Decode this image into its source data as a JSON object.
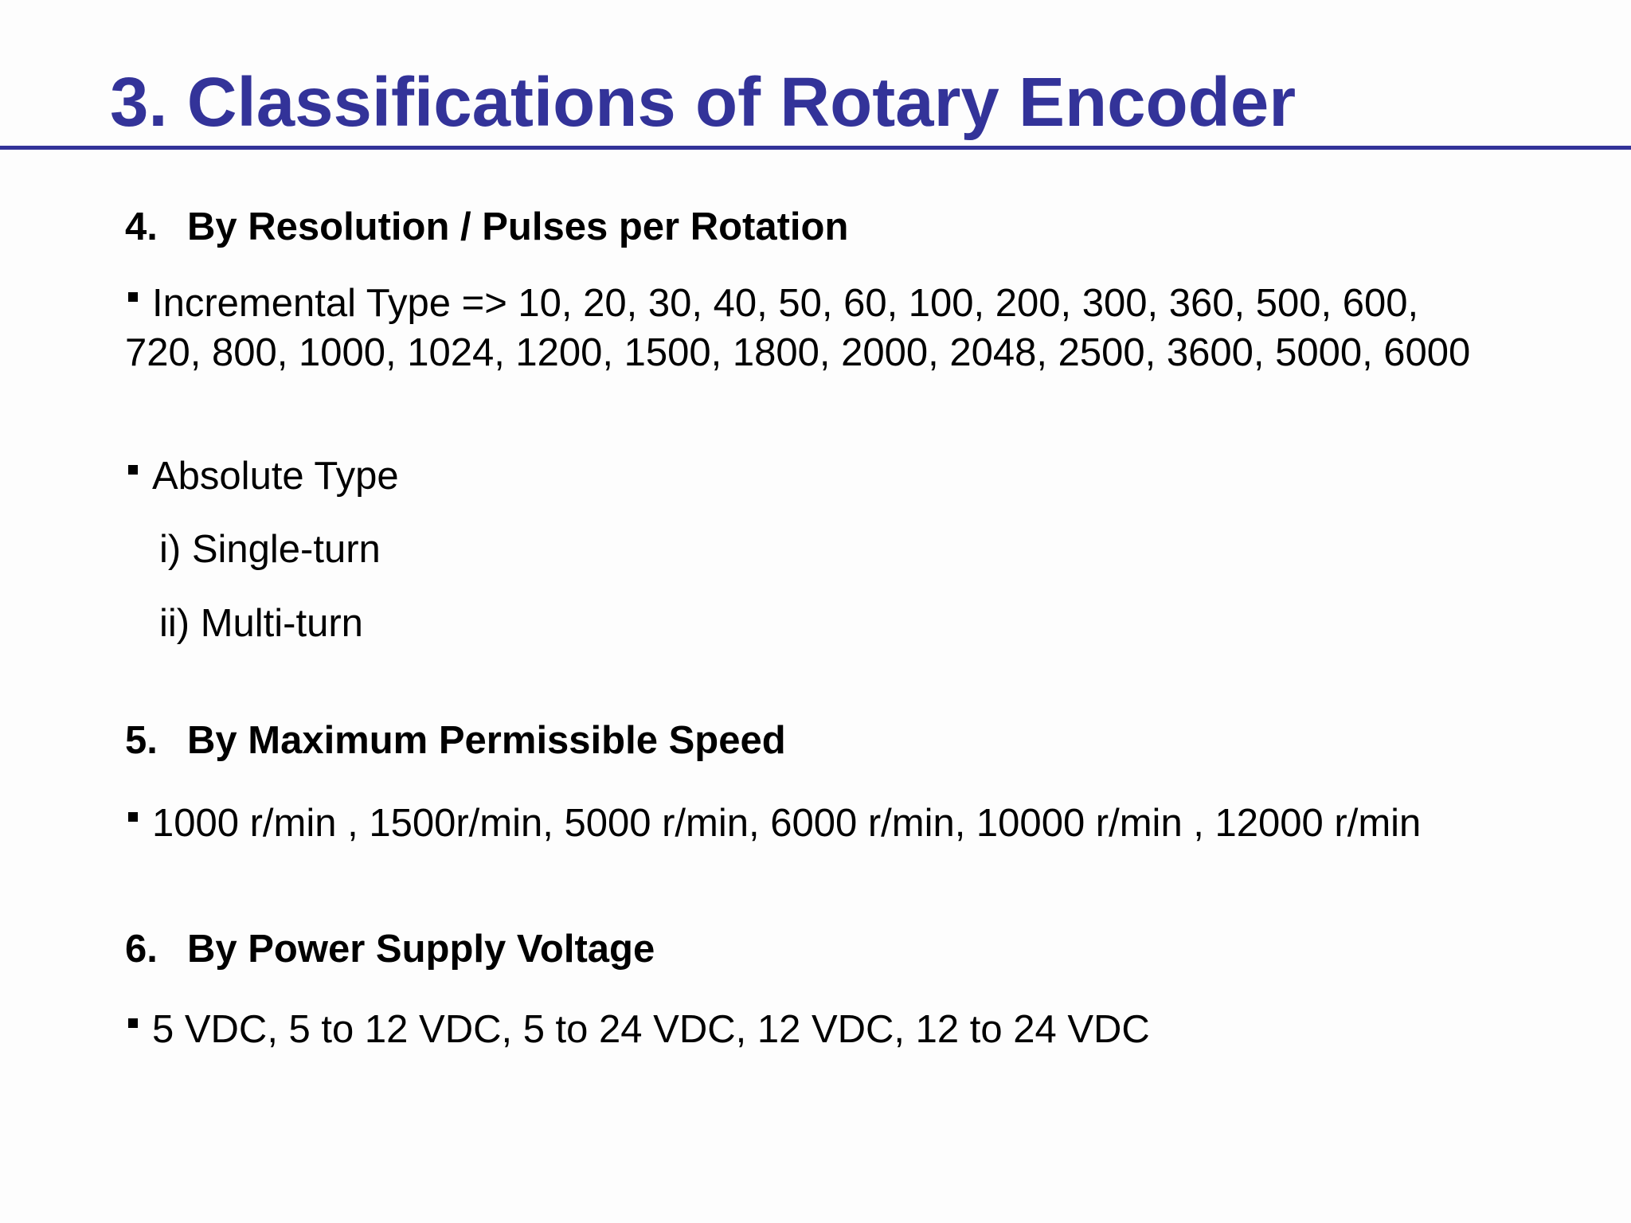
{
  "slide": {
    "title": "3. Classifications of Rotary Encoder",
    "colors": {
      "title": "#333399",
      "rule": "#333399",
      "text": "#000000",
      "background": "#fdfdfd"
    },
    "sections": [
      {
        "number": "4.",
        "heading": "By Resolution / Pulses per Rotation",
        "bullets": [
          "Incremental Type => 10, 20, 30, 40, 50, 60, 100, 200, 300, 360, 500, 600, 720, 800, 1000, 1024, 1200, 1500, 1800, 2000, 2048, 2500, 3600, 5000, 6000",
          "Absolute Type"
        ],
        "sub_items": [
          "i) Single-turn",
          "ii) Multi-turn"
        ]
      },
      {
        "number": "5.",
        "heading": "By Maximum Permissible Speed",
        "bullets": [
          "1000 r/min , 1500r/min, 5000 r/min, 6000 r/min, 10000 r/min , 12000 r/min"
        ]
      },
      {
        "number": "6.",
        "heading": "By Power Supply Voltage",
        "bullets": [
          "5 VDC, 5 to 12 VDC, 5 to 24 VDC, 12 VDC, 12 to 24 VDC"
        ]
      }
    ]
  }
}
